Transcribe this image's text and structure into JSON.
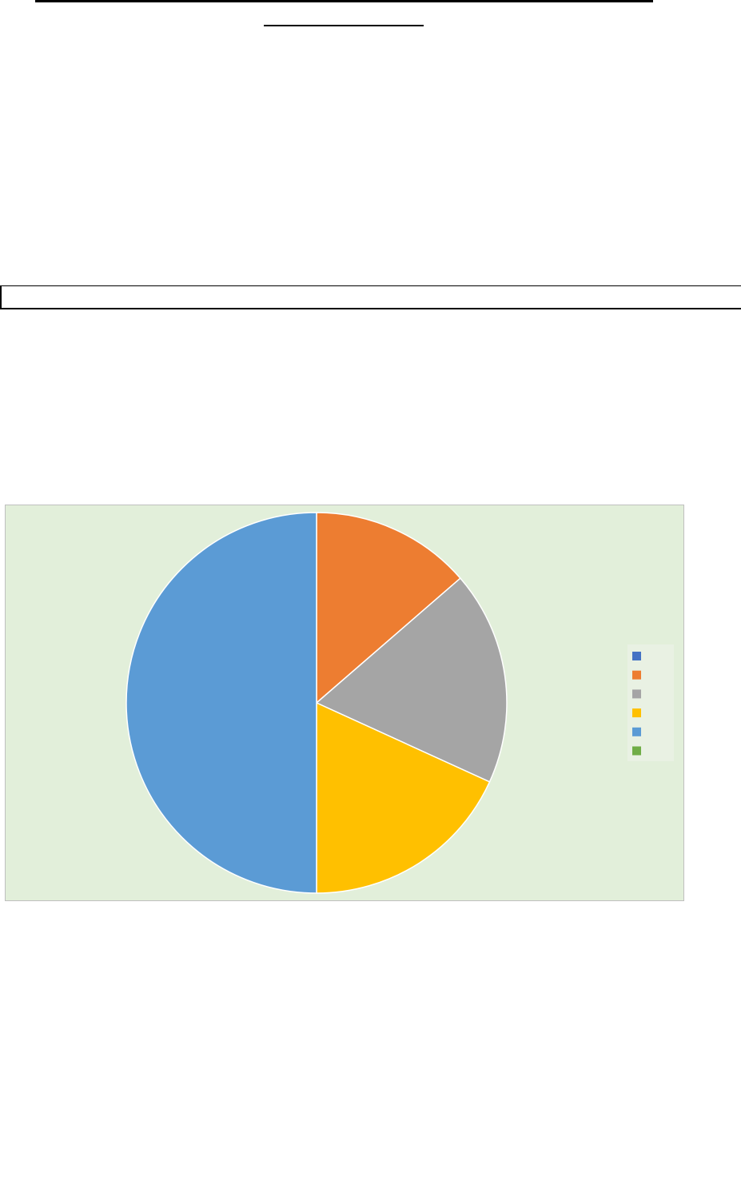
{
  "chart_data": {
    "type": "pie",
    "title": "",
    "start_angle": "12 o'clock",
    "direction": "clockwise",
    "legend_position": "right",
    "background_color": "#e2efda",
    "slices": [
      {
        "value": 0,
        "color": "#4472c4"
      },
      {
        "value": 3,
        "color": "#ed7d31"
      },
      {
        "value": 4,
        "color": "#a5a5a5"
      },
      {
        "value": 4,
        "color": "#ffc000"
      },
      {
        "value": 11,
        "color": "#5b9bd5"
      },
      {
        "value": 0,
        "color": "#70ad47"
      }
    ]
  }
}
